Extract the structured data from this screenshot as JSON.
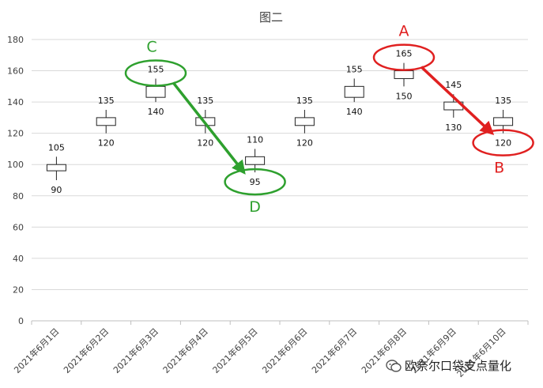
{
  "chart_data": {
    "type": "candlestick",
    "title": "图二",
    "categories": [
      "2021年6月1日",
      "2021年6月2日",
      "2021年6月3日",
      "2021年6月4日",
      "2021年6月5日",
      "2021年6月6日",
      "2021年6月7日",
      "2021年6月8日",
      "2021年6月9日",
      "2021年6月10日"
    ],
    "high": [
      105,
      135,
      155,
      135,
      110,
      135,
      155,
      165,
      145,
      135
    ],
    "low": [
      90,
      120,
      140,
      120,
      95,
      120,
      140,
      150,
      130,
      120
    ],
    "open": [
      96,
      125,
      143,
      125,
      100,
      125,
      143,
      155,
      135,
      125
    ],
    "close": [
      100,
      130,
      150,
      130,
      105,
      130,
      150,
      160,
      140,
      130
    ],
    "ylim": [
      0,
      180
    ],
    "yticks": [
      0,
      20,
      40,
      60,
      80,
      100,
      120,
      140,
      160,
      180
    ],
    "grid": true,
    "annotations": [
      {
        "label": "A",
        "color": "#e02020",
        "circled": "165"
      },
      {
        "label": "B",
        "color": "#e02020",
        "circled": "120"
      },
      {
        "label": "C",
        "color": "#2ea02e",
        "circled": "155"
      },
      {
        "label": "D",
        "color": "#2ea02e",
        "circled": "95"
      }
    ]
  },
  "watermark": {
    "text": "欧奈尔口袋支点量化"
  }
}
